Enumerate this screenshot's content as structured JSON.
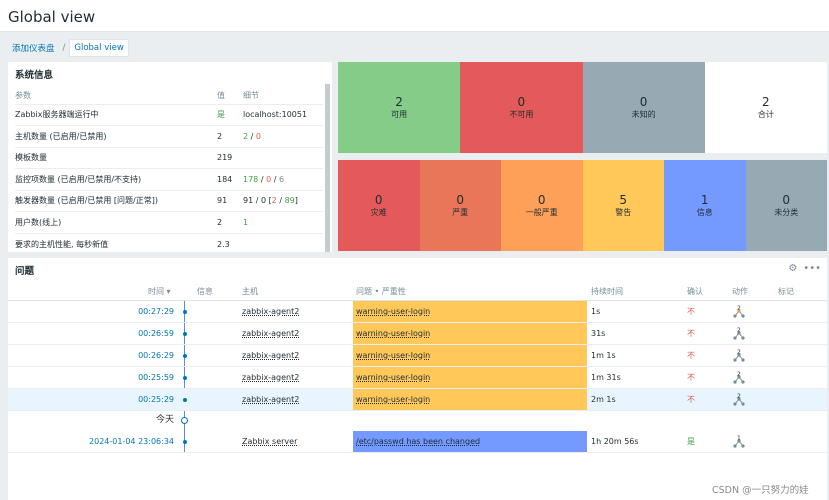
{
  "page": {
    "title": "Global view"
  },
  "breadcrumbs": {
    "parent": "添加仪表盘",
    "separator": "/",
    "current": "Global view"
  },
  "system_info": {
    "title": "系统信息",
    "headers": {
      "param": "参数",
      "value": "值",
      "detail": "细节"
    },
    "rows": [
      {
        "param": "Zabbix服务器端运行中",
        "value": "是",
        "d1": "localhost:10051",
        "d2": "",
        "d3": "",
        "d4": "",
        "d5": "",
        "d6": "",
        "d7": ""
      },
      {
        "param": "主机数量 (已启用/已禁用)",
        "value": "2",
        "d1": "2",
        "d2": " / ",
        "d3": "0",
        "d4": "",
        "d5": "",
        "d6": "",
        "d7": ""
      },
      {
        "param": "模板数量",
        "value": "219",
        "d1": "",
        "d2": "",
        "d3": "",
        "d4": "",
        "d5": "",
        "d6": "",
        "d7": ""
      },
      {
        "param": "监控项数量 (已启用/已禁用/不支持)",
        "value": "184",
        "d1": "178",
        "d2": " / ",
        "d3": "0",
        "d4": " / ",
        "d5": "6",
        "d6": "",
        "d7": ""
      },
      {
        "param": "触发器数量 (已启用/已禁用 [问题/正常])",
        "value": "91",
        "d1": "91 / 0 [",
        "d2": "2",
        "d3": " / ",
        "d4": "89",
        "d5": "]",
        "d6": "",
        "d7": ""
      },
      {
        "param": "用户数(线上)",
        "value": "2",
        "d1": "1",
        "d2": "",
        "d3": "",
        "d4": "",
        "d5": "",
        "d6": "",
        "d7": ""
      },
      {
        "param": "要求的主机性能, 每秒新值",
        "value": "2.3",
        "d1": "",
        "d2": "",
        "d3": "",
        "d4": "",
        "d5": "",
        "d6": "",
        "d7": ""
      }
    ]
  },
  "host_availability": [
    {
      "count": "2",
      "label": "可用",
      "color": "#86cc89"
    },
    {
      "count": "0",
      "label": "不可用",
      "color": "#e45959"
    },
    {
      "count": "0",
      "label": "未知的",
      "color": "#97aab3"
    },
    {
      "count": "2",
      "label": "合计",
      "color": "#ffffff"
    }
  ],
  "problems_by_severity": [
    {
      "count": "0",
      "label": "灾难",
      "color": "#e45959"
    },
    {
      "count": "0",
      "label": "严重",
      "color": "#e97659"
    },
    {
      "count": "0",
      "label": "一般严重",
      "color": "#ffa059"
    },
    {
      "count": "5",
      "label": "警告",
      "color": "#ffc859"
    },
    {
      "count": "1",
      "label": "信息",
      "color": "#7499ff"
    },
    {
      "count": "0",
      "label": "未分类",
      "color": "#97aab3"
    }
  ],
  "problems": {
    "title": "问题",
    "headers": {
      "time": "时间 ▾",
      "info": "信息",
      "host": "主机",
      "problem": "问题 • 严重性",
      "duration": "持续时间",
      "ack": "确认",
      "actions": "动作",
      "tags": "标记"
    },
    "today_label": "今天",
    "rows": [
      {
        "time": "00:27:29",
        "host": "zabbix-agent2",
        "problem": "warning-user-login",
        "duration": "1s",
        "ack": "不",
        "severity_color": "#ffc859"
      },
      {
        "time": "00:26:59",
        "host": "zabbix-agent2",
        "problem": "warning-user-login",
        "duration": "31s",
        "ack": "不",
        "severity_color": "#ffc859"
      },
      {
        "time": "00:26:29",
        "host": "zabbix-agent2",
        "problem": "warning-user-login",
        "duration": "1m 1s",
        "ack": "不",
        "severity_color": "#ffc859"
      },
      {
        "time": "00:25:59",
        "host": "zabbix-agent2",
        "problem": "warning-user-login",
        "duration": "1m 31s",
        "ack": "不",
        "severity_color": "#ffc859"
      },
      {
        "time": "00:25:29",
        "host": "zabbix-agent2",
        "problem": "warning-user-login",
        "duration": "2m 1s",
        "ack": "不",
        "severity_color": "#ffc859"
      }
    ],
    "last_row": {
      "time": "2024-01-04 23:06:34",
      "host": "Zabbix server",
      "problem": "/etc/passwd has been changed",
      "duration": "1h 20m 56s",
      "ack": "是",
      "severity_color": "#7499ff"
    }
  },
  "watermark": "CSDN @一只努力的娃"
}
